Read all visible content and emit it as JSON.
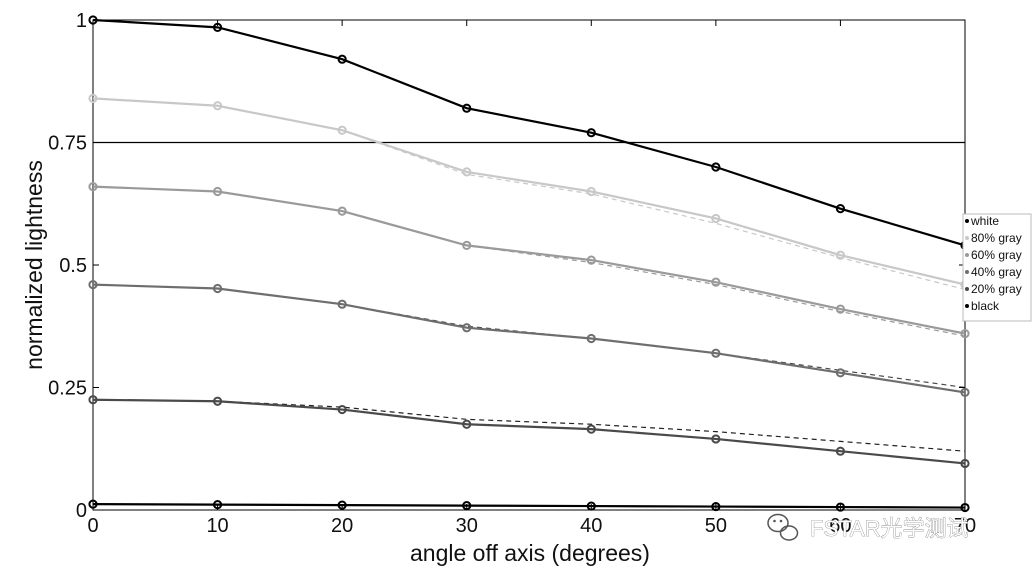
{
  "chart_data": {
    "type": "line",
    "title": "",
    "xlabel": "angle off axis (degrees)",
    "ylabel": "normalized lightness",
    "xlim": [
      0,
      70
    ],
    "ylim": [
      0,
      1
    ],
    "x_ticks": [
      0,
      10,
      20,
      30,
      40,
      50,
      60,
      70
    ],
    "x_tick_labels": [
      "0",
      "10",
      "20",
      "30",
      "40",
      "50",
      "60",
      "70"
    ],
    "y_ticks": [
      0,
      0.25,
      0.5,
      0.75,
      1
    ],
    "y_tick_labels": [
      "0",
      "0.25",
      "0.5",
      "0.75",
      "1"
    ],
    "grid": false,
    "legend_position": "right",
    "reference_line": {
      "y": 0.75,
      "color": "#000000"
    },
    "x": [
      0,
      10,
      20,
      30,
      40,
      50,
      60,
      70
    ],
    "series": [
      {
        "name": "white",
        "color": "#000000",
        "values": [
          1.0,
          0.985,
          0.92,
          0.82,
          0.77,
          0.7,
          0.615,
          0.54
        ]
      },
      {
        "name": "80% gray",
        "color": "#c8c8c8",
        "values": [
          0.84,
          0.825,
          0.775,
          0.69,
          0.65,
          0.595,
          0.52,
          0.46
        ]
      },
      {
        "name": "60% gray",
        "color": "#9a9a9a",
        "values": [
          0.66,
          0.65,
          0.61,
          0.54,
          0.51,
          0.465,
          0.41,
          0.36
        ]
      },
      {
        "name": "40% gray",
        "color": "#6e6e6e",
        "values": [
          0.46,
          0.452,
          0.42,
          0.372,
          0.35,
          0.32,
          0.28,
          0.24
        ]
      },
      {
        "name": "20% gray",
        "color": "#4a4a4a",
        "values": [
          0.225,
          0.222,
          0.205,
          0.175,
          0.165,
          0.145,
          0.12,
          0.095
        ]
      },
      {
        "name": "black",
        "color": "#000000",
        "values": [
          0.012,
          0.011,
          0.01,
          0.009,
          0.008,
          0.007,
          0.006,
          0.005
        ]
      }
    ],
    "dashed_series": [
      {
        "color": "#c8c8c8",
        "values": [
          0.84,
          0.825,
          0.775,
          0.685,
          0.645,
          0.585,
          0.515,
          0.45
        ]
      },
      {
        "color": "#9a9a9a",
        "values": [
          0.66,
          0.65,
          0.61,
          0.54,
          0.505,
          0.46,
          0.405,
          0.355
        ]
      },
      {
        "color": "#4a4a4a",
        "values": [
          0.46,
          0.452,
          0.42,
          0.375,
          0.35,
          0.32,
          0.285,
          0.25
        ]
      },
      {
        "color": "#222222",
        "values": [
          0.225,
          0.222,
          0.21,
          0.185,
          0.175,
          0.16,
          0.14,
          0.12
        ]
      }
    ],
    "legend": [
      "white",
      "80% gray",
      "60% gray",
      "40% gray",
      "20% gray",
      "black"
    ]
  },
  "watermark": {
    "text": "FSTAR光学测试",
    "icon": "wechat-icon"
  }
}
